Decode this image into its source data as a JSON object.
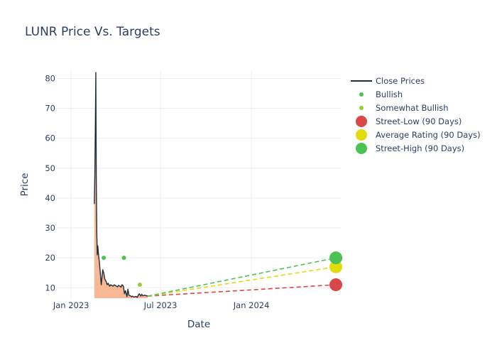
{
  "chart_data": {
    "type": "line",
    "title": "LUNR Price Vs. Targets",
    "xlabel": "Date",
    "ylabel": "Price",
    "xlim": [
      "2022-12-03",
      "2024-06-30"
    ],
    "ylim": [
      6.5,
      82.5
    ],
    "x_ticks": [
      {
        "date": "2023-01-01",
        "label": "Jan 2023"
      },
      {
        "date": "2023-07-01",
        "label": "Jul 2023"
      },
      {
        "date": "2024-01-01",
        "label": "Jan 2024"
      }
    ],
    "y_ticks": [
      10,
      20,
      30,
      40,
      50,
      60,
      70,
      80
    ],
    "grid": true,
    "legend_position": "right",
    "close_prices": {
      "name": "Close Prices",
      "color": "#1f2d3d",
      "fill_color": "#f9b48e",
      "x": [
        "2023-02-17",
        "2023-02-18",
        "2023-02-19",
        "2023-02-20",
        "2023-02-21",
        "2023-02-22",
        "2023-02-23",
        "2023-02-24",
        "2023-02-25",
        "2023-02-26",
        "2023-02-27",
        "2023-02-28",
        "2023-03-01",
        "2023-03-02",
        "2023-03-03",
        "2023-03-06",
        "2023-03-08",
        "2023-03-10",
        "2023-03-13",
        "2023-03-15",
        "2023-03-17",
        "2023-03-20",
        "2023-03-22",
        "2023-03-24",
        "2023-03-27",
        "2023-03-29",
        "2023-03-31",
        "2023-04-03",
        "2023-04-05",
        "2023-04-07",
        "2023-04-10",
        "2023-04-12",
        "2023-04-14",
        "2023-04-17",
        "2023-04-19",
        "2023-04-21",
        "2023-04-24",
        "2023-04-26",
        "2023-04-28",
        "2023-05-01",
        "2023-05-03",
        "2023-05-05",
        "2023-05-08",
        "2023-05-10",
        "2023-05-12",
        "2023-05-15",
        "2023-05-17",
        "2023-05-19",
        "2023-05-22",
        "2023-05-24",
        "2023-05-26",
        "2023-05-30",
        "2023-06-01",
        "2023-06-05"
      ],
      "values": [
        38,
        48,
        63,
        82,
        45,
        28,
        21,
        24,
        22,
        20,
        19,
        17,
        15,
        13,
        11,
        16,
        15,
        13,
        12,
        11,
        11.5,
        10.5,
        11,
        10.8,
        10.5,
        11,
        10.8,
        10.5,
        10.3,
        10.8,
        10.5,
        10.2,
        11,
        10.5,
        8,
        9,
        7,
        9.5,
        7.5,
        7.3,
        7,
        7.2,
        6.9,
        7,
        7.1,
        6.8,
        7.5,
        8,
        7.2,
        7.8,
        7.3,
        7.5,
        7.4,
        7.2
      ]
    },
    "analyst_ratings": [
      {
        "name": "Bullish",
        "color": "#4bc254",
        "points": [
          {
            "x": "2023-03-08",
            "y": 20
          },
          {
            "x": "2023-04-18",
            "y": 20
          }
        ]
      },
      {
        "name": "Somewhat Bullish",
        "color": "#8ed130",
        "points": [
          {
            "x": "2023-05-20",
            "y": 11
          }
        ]
      }
    ],
    "targets": {
      "start": {
        "x": "2023-06-05",
        "y": 7.2
      },
      "end_date": "2024-06-20",
      "series": [
        {
          "name": "Street-Low (90 Days)",
          "color": "#d9474a",
          "value": 11
        },
        {
          "name": "Average Rating (90 Days)",
          "color": "#e1dc0c",
          "value": 17
        },
        {
          "name": "Street-High (90 Days)",
          "color": "#4bc254",
          "value": 20
        }
      ]
    }
  }
}
